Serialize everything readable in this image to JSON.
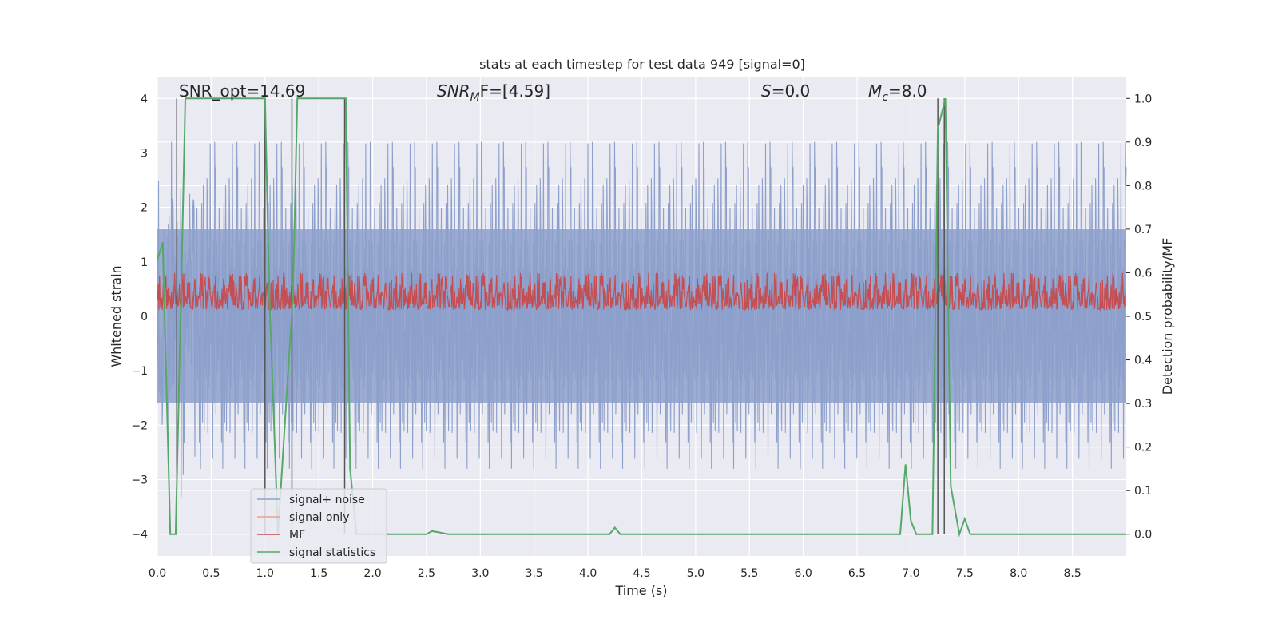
{
  "chart_data": {
    "type": "line",
    "title": "stats at each timestep for test data 949 [signal=0]",
    "xlabel": "Time (s)",
    "ylabel": "Whitened strain",
    "y2label": "Detection probability/MF",
    "xlim": [
      0.0,
      9.0
    ],
    "ylim": [
      -4.4,
      4.4
    ],
    "y2lim": [
      -0.05,
      1.05
    ],
    "x_ticks": [
      "0.0",
      "0.5",
      "1.0",
      "1.5",
      "2.0",
      "2.5",
      "3.0",
      "3.5",
      "4.0",
      "4.5",
      "5.0",
      "5.5",
      "6.0",
      "6.5",
      "7.0",
      "7.5",
      "8.0",
      "8.5"
    ],
    "y_ticks": [
      "4",
      "3",
      "2",
      "1",
      "0",
      "−1",
      "−2",
      "−3",
      "−4"
    ],
    "y2_ticks": [
      "1.0",
      "0.9",
      "0.8",
      "0.7",
      "0.6",
      "0.5",
      "0.4",
      "0.3",
      "0.2",
      "0.1",
      "0.0"
    ],
    "grid": true,
    "legend_position": "lower-left",
    "annotations": {
      "snr_opt": "SNR_opt=14.69",
      "snr_mf_main": "SNR",
      "snr_mf_sub": "M",
      "snr_mf_rest": "F=[4.59]",
      "s_main": "S",
      "s_rest": "=0.0",
      "mc_main": "M",
      "mc_sub": "c",
      "mc_rest": "=8.0"
    },
    "vertical_markers": [
      0.18,
      1.0,
      1.25,
      1.74,
      7.25,
      7.31
    ],
    "series": [
      {
        "name": "signal+ noise",
        "color": "#8da0cb",
        "kind": "noise",
        "amplitude_envelope": [
          -3.9,
          3.2
        ]
      },
      {
        "name": "signal only",
        "color": "#e8a387",
        "values": []
      },
      {
        "name": "MF",
        "color": "#c44e52",
        "kind": "mf",
        "range": [
          0.5,
          0.6
        ]
      },
      {
        "name": "signal statistics",
        "color": "#55a868",
        "axis": "right",
        "x": [
          0.0,
          0.05,
          0.12,
          0.17,
          0.22,
          0.26,
          1.0,
          1.04,
          1.12,
          1.26,
          1.3,
          1.34,
          1.75,
          1.79,
          1.85,
          1.9,
          2.5,
          2.55,
          2.6,
          2.7,
          4.2,
          4.25,
          4.3,
          6.9,
          6.95,
          7.0,
          7.05,
          7.2,
          7.25,
          7.32,
          7.37,
          7.45,
          7.5,
          7.55,
          7.6,
          9.0
        ],
        "values": [
          0.63,
          0.67,
          0.0,
          0.0,
          0.55,
          1.0,
          1.0,
          0.55,
          0.0,
          0.55,
          1.0,
          1.0,
          1.0,
          0.15,
          0.0,
          0.0,
          0.0,
          0.007,
          0.005,
          0.0,
          0.0,
          0.015,
          0.0,
          0.0,
          0.16,
          0.03,
          0.0,
          0.0,
          0.93,
          1.0,
          0.11,
          0.0,
          0.035,
          0.0,
          0.0,
          0.0
        ]
      }
    ]
  }
}
